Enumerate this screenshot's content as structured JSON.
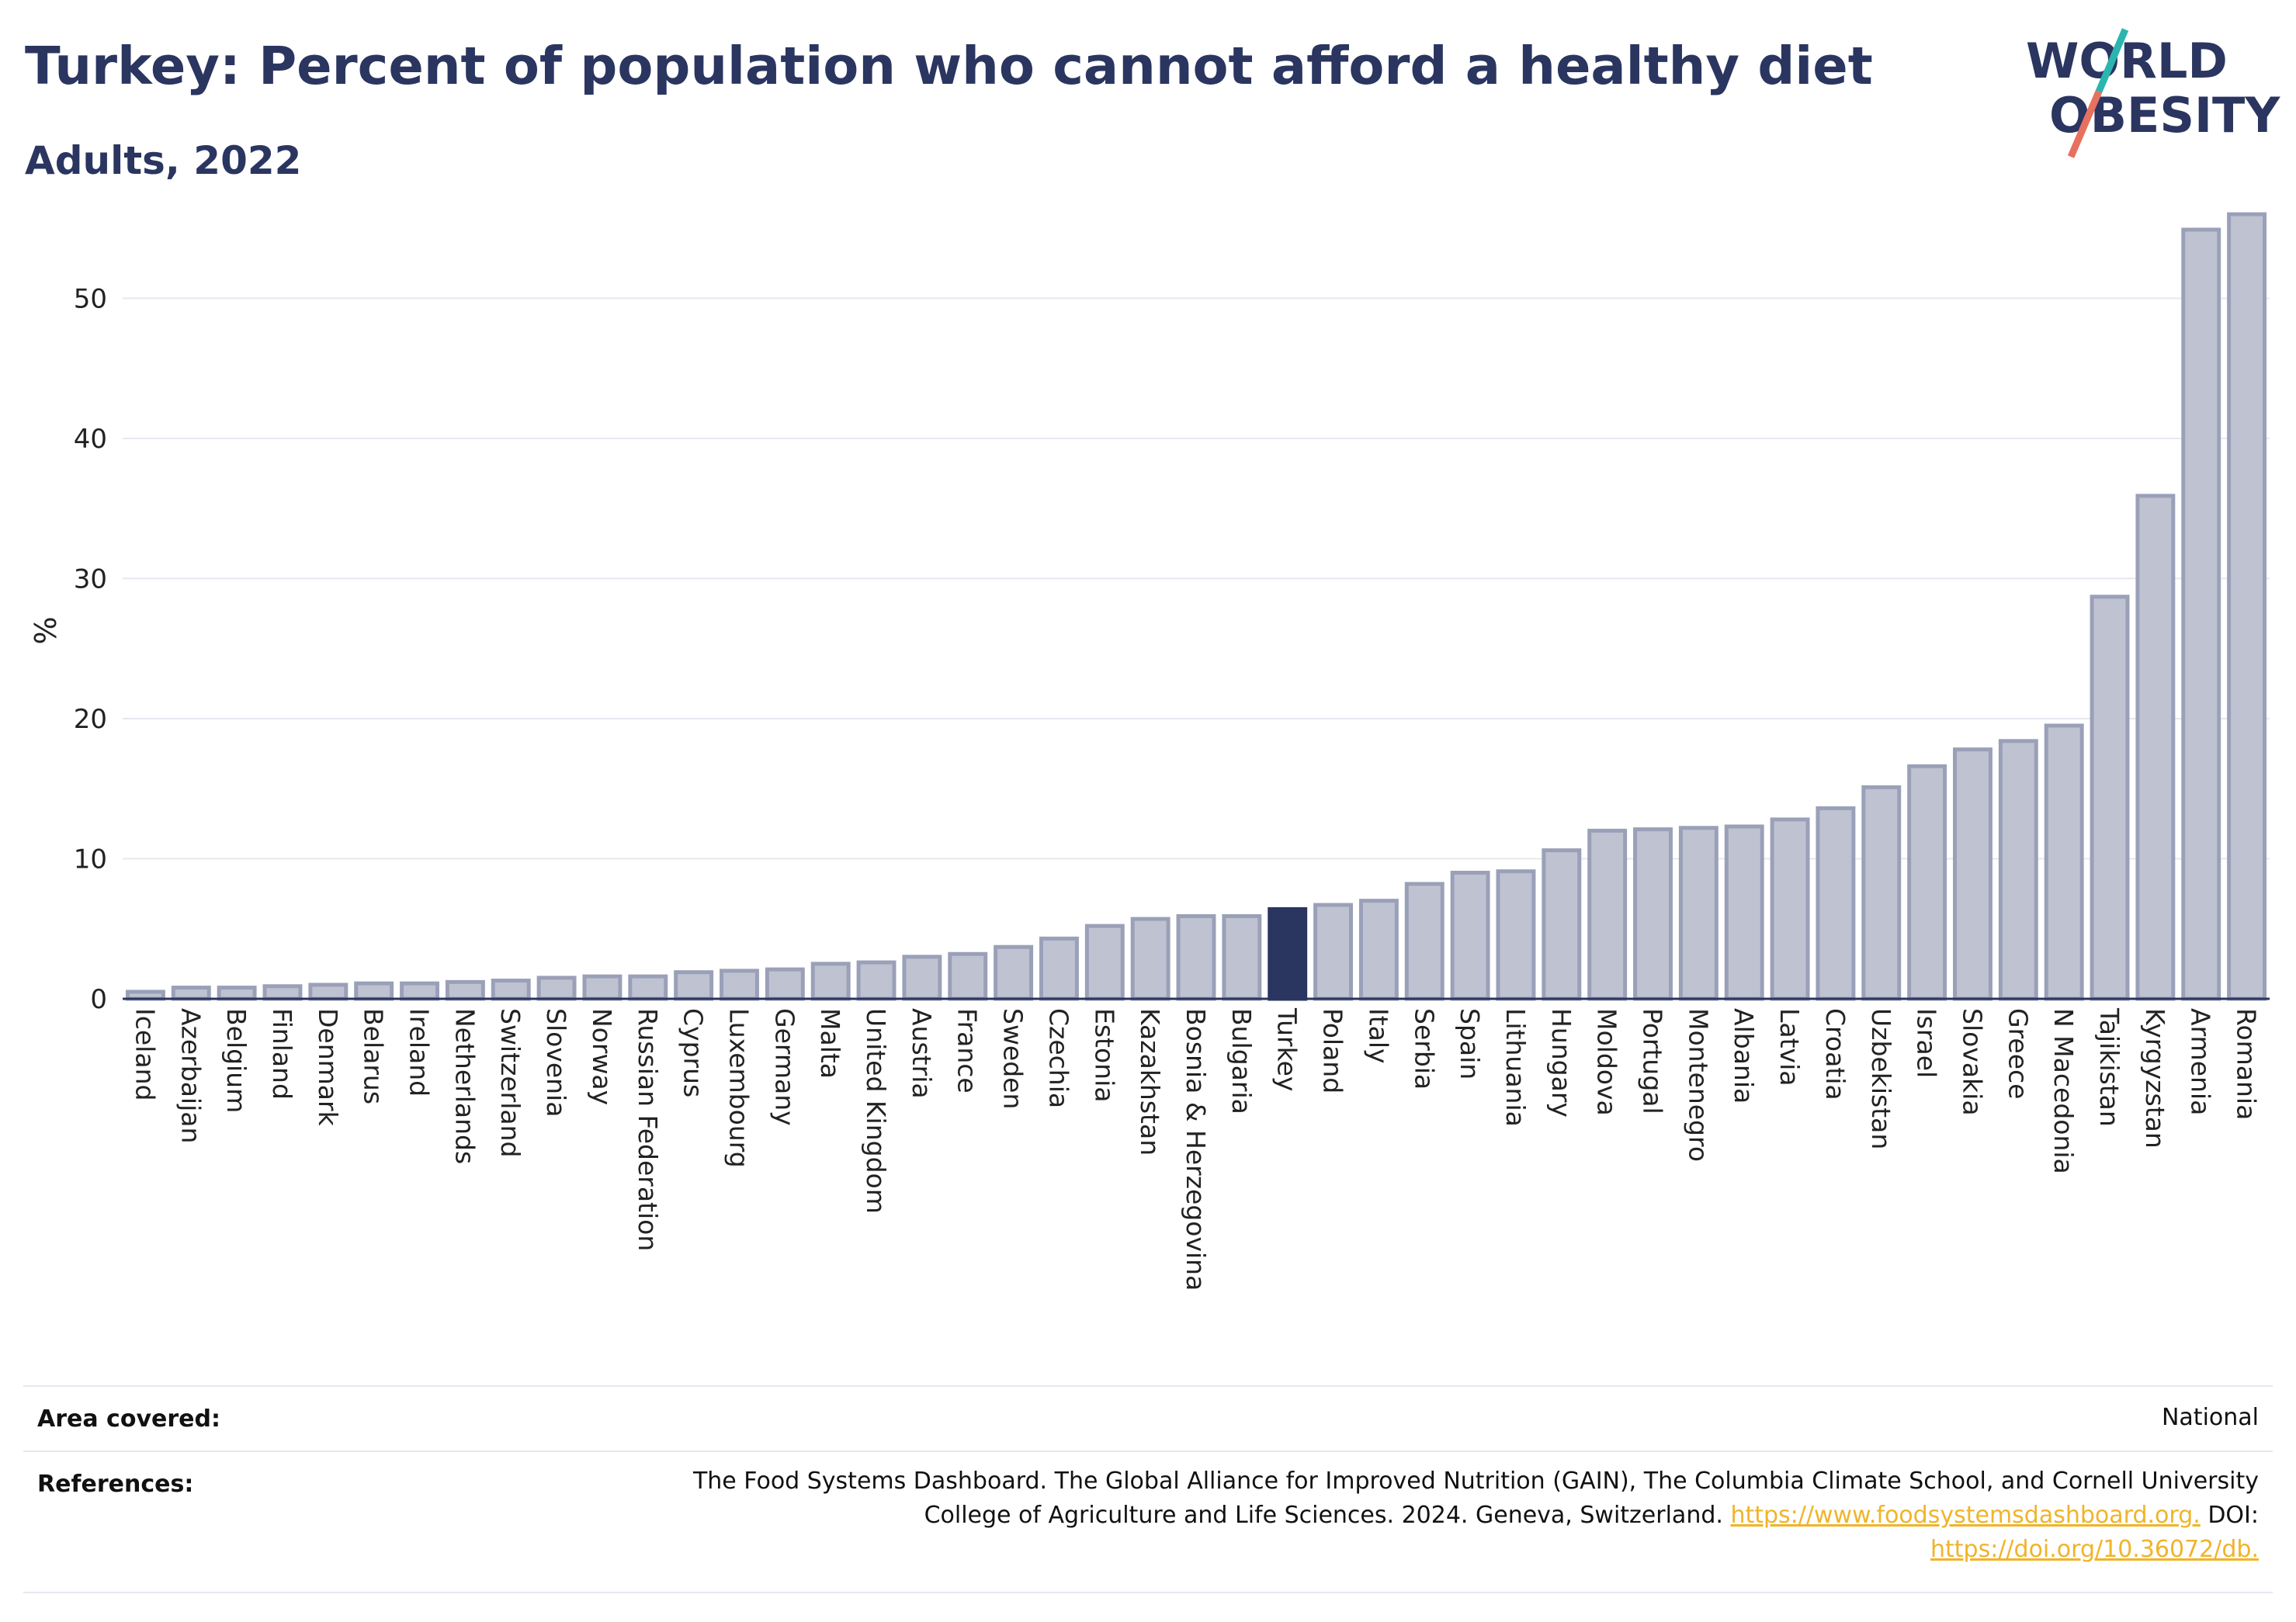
{
  "header": {
    "title": "Turkey: Percent of population who cannot afford a healthy diet",
    "subtitle": "Adults, 2022",
    "logo_line1": "WORLD",
    "logo_line2": "OBESITY"
  },
  "colors": {
    "bar": "#bfc3d1",
    "bar_stroke": "#9aa0b8",
    "highlight": "#2a3560",
    "title": "#2a3560",
    "link": "#f0b429",
    "logo_slash_top": "#2bb5b0",
    "logo_slash_bottom": "#e8705f"
  },
  "chart_data": {
    "type": "bar",
    "title": "Turkey: Percent of population who cannot afford a healthy diet",
    "subtitle": "Adults, 2022",
    "xlabel": "",
    "ylabel": "%",
    "ylim": [
      0,
      57
    ],
    "yticks": [
      0,
      10,
      20,
      30,
      40,
      50
    ],
    "grid": true,
    "highlight": "Turkey",
    "categories": [
      "Iceland",
      "Azerbaijan",
      "Belgium",
      "Finland",
      "Denmark",
      "Belarus",
      "Ireland",
      "Netherlands",
      "Switzerland",
      "Slovenia",
      "Norway",
      "Russian Federation",
      "Cyprus",
      "Luxembourg",
      "Germany",
      "Malta",
      "United Kingdom",
      "Austria",
      "France",
      "Sweden",
      "Czechia",
      "Estonia",
      "Kazakhstan",
      "Bosnia & Herzegovina",
      "Bulgaria",
      "Turkey",
      "Poland",
      "Italy",
      "Serbia",
      "Spain",
      "Lithuania",
      "Hungary",
      "Moldova",
      "Portugal",
      "Montenegro",
      "Albania",
      "Latvia",
      "Croatia",
      "Uzbekistan",
      "Israel",
      "Slovakia",
      "Greece",
      "N Macedonia",
      "Tajikistan",
      "Kyrgyzstan",
      "Armenia",
      "Romania"
    ],
    "values": [
      0.5,
      0.8,
      0.8,
      0.9,
      1.0,
      1.1,
      1.1,
      1.2,
      1.3,
      1.5,
      1.6,
      1.6,
      1.9,
      2.0,
      2.1,
      2.5,
      2.6,
      3.0,
      3.2,
      3.7,
      4.3,
      5.2,
      5.7,
      5.9,
      5.9,
      6.4,
      6.7,
      7.0,
      8.2,
      9.0,
      9.1,
      10.6,
      12.0,
      12.1,
      12.2,
      12.3,
      12.8,
      13.6,
      15.1,
      16.6,
      17.8,
      18.4,
      19.5,
      28.7,
      35.9,
      54.9,
      56.0
    ]
  },
  "footer": {
    "area_label": "Area covered:",
    "area_value": "National",
    "ref_label": "References:",
    "ref_line1": "The Food Systems Dashboard. The Global Alliance for Improved Nutrition (GAIN), The Columbia Climate School, and Cornell University",
    "ref_line2_text": "College of Agriculture and Life Sciences. 2024. Geneva, Switzerland.",
    "ref_link1": "https://www.foodsystemsdashboard.org.",
    "ref_line2_after": "DOI:",
    "ref_link2": "https://doi.org/10.36072/db."
  }
}
